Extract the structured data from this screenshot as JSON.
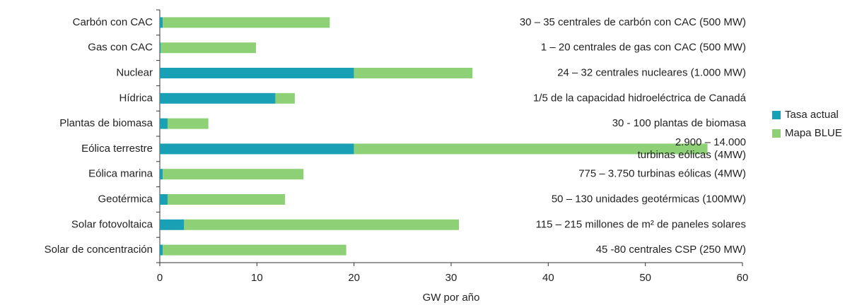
{
  "chart_data": {
    "type": "stacked-barh",
    "categories": [
      "Carbón con CAC",
      "Gas con CAC",
      "Nuclear",
      "Hídrica",
      "Plantas de biomasa",
      "Eólica terrestre",
      "Eólica marina",
      "Geotérmica",
      "Solar fotovoltaica",
      "Solar de concentración"
    ],
    "series": [
      {
        "name": "Tasa actual",
        "color": "#1aa0b4",
        "values": [
          0.3,
          0.1,
          20,
          11.9,
          0.8,
          20,
          0.3,
          0.8,
          2.5,
          0.3
        ]
      },
      {
        "name": "Mapa BLUE",
        "color": "#8dd076",
        "values": [
          17.2,
          9.8,
          12.2,
          2,
          4.2,
          36.4,
          14.5,
          12.1,
          28.3,
          18.9
        ]
      }
    ],
    "annotations": [
      [
        "30 – 35 centrales de carbón con CAC (500 MW)"
      ],
      [
        "1 – 20 centrales de gas con CAC (500 MW)"
      ],
      [
        "24 – 32 centrales nucleares (1.000 MW)"
      ],
      [
        "1/5 de la capacidad hidroeléctrica de Canadá"
      ],
      [
        "30 - 100 plantas de biomasa"
      ],
      [
        "2.900 – 14.000",
        "turbinas eólicas (4MW)"
      ],
      [
        "775 – 3.750 turbinas eólicas (4MW)"
      ],
      [
        "50 – 130 unidades geotérmicas (100MW)"
      ],
      [
        "115 – 215 millones de m² de paneles solares"
      ],
      [
        "45 -80 centrales CSP (250 MW)"
      ]
    ],
    "xlabel": "GW por año",
    "xlim": [
      0,
      60
    ],
    "xticks": [
      0,
      10,
      20,
      30,
      40,
      50,
      60
    ],
    "legend": "right"
  }
}
